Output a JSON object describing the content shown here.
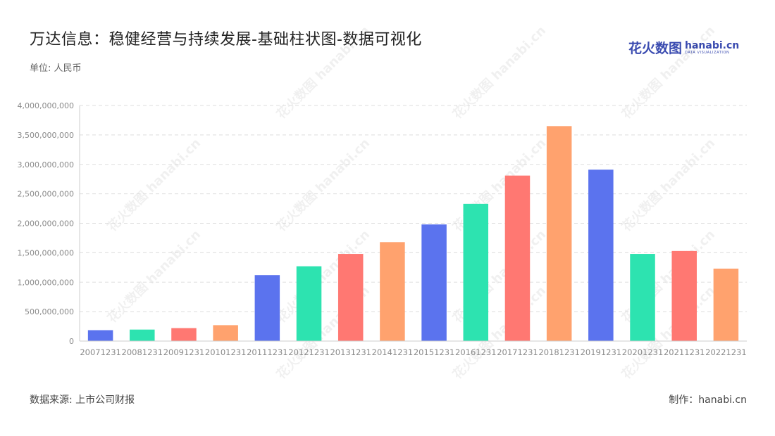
{
  "header": {
    "title": "万达信息：稳健经营与持续发展-基础柱状图-数据可视化",
    "unit": "单位: 人民币"
  },
  "brand": {
    "cn": "花火数图",
    "en": "hanabi.cn",
    "tagline": "DATA VISUALIZATION",
    "color": "#3a4bb0"
  },
  "footer": {
    "source": "数据来源: 上市公司财报",
    "maker": "制作：hanabi.cn"
  },
  "watermark_text": "花火数图 hanabi.cn",
  "chart_data": {
    "type": "bar",
    "categories": [
      "20071231",
      "20081231",
      "20091231",
      "20101231",
      "20111231",
      "20121231",
      "20131231",
      "20141231",
      "20151231",
      "20161231",
      "20171231",
      "20181231",
      "20191231",
      "20201231",
      "20211231",
      "20221231"
    ],
    "values": [
      185000000,
      195000000,
      220000000,
      270000000,
      1120000000,
      1270000000,
      1480000000,
      1680000000,
      1980000000,
      2330000000,
      2810000000,
      3650000000,
      2910000000,
      1480000000,
      1530000000,
      1230000000
    ],
    "colors": [
      "#5b73ee",
      "#2de3b0",
      "#ff7872",
      "#ffa26e",
      "#5b73ee",
      "#2de3b0",
      "#ff7872",
      "#ffa26e",
      "#5b73ee",
      "#2de3b0",
      "#ff7872",
      "#ffa26e",
      "#5b73ee",
      "#2de3b0",
      "#ff7872",
      "#ffa26e"
    ],
    "ylim": [
      0,
      4000000000
    ],
    "yticks": [
      {
        "value": 0,
        "label": "0"
      },
      {
        "value": 500000000,
        "label": "500,000,000"
      },
      {
        "value": 1000000000,
        "label": "1,000,000,000"
      },
      {
        "value": 1500000000,
        "label": "1,500,000,000"
      },
      {
        "value": 2000000000,
        "label": "2,000,000,000"
      },
      {
        "value": 2500000000,
        "label": "2,500,000,000"
      },
      {
        "value": 3000000000,
        "label": "3,000,000,000"
      },
      {
        "value": 3500000000,
        "label": "3,500,000,000"
      },
      {
        "value": 4000000000,
        "label": "4,000,000,000"
      }
    ],
    "grid": true,
    "gridColor": "#dddddd",
    "xlabel": "",
    "ylabel": ""
  }
}
